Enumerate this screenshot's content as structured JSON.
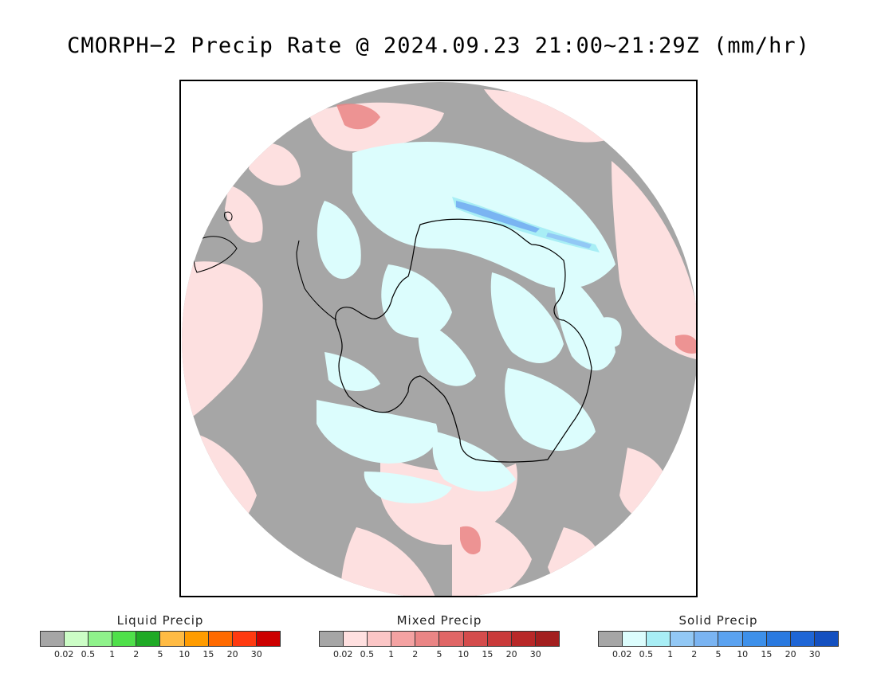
{
  "title": "CMORPH−2 Precip Rate @ 2024.09.23 21:00~21:29Z (mm/hr)",
  "map": {
    "projection": "south-polar-stereographic",
    "background_color": "#a6a6a6",
    "coastline_color": "#000000"
  },
  "legends": [
    {
      "name": "liquid",
      "title": "Liquid Precip",
      "ticks": [
        "0.02",
        "0.5",
        "1",
        "2",
        "5",
        "10",
        "15",
        "20",
        "30"
      ],
      "colors": [
        "#a6a6a6",
        "#ccfdc6",
        "#8ff28b",
        "#4fe04a",
        "#1faa25",
        "#ffbb44",
        "#ff9c00",
        "#ff6a00",
        "#ff3a10",
        "#cc0000"
      ]
    },
    {
      "name": "mixed",
      "title": "Mixed Precip",
      "ticks": [
        "0.02",
        "0.5",
        "1",
        "2",
        "5",
        "10",
        "15",
        "20",
        "30"
      ],
      "colors": [
        "#a6a6a6",
        "#ffe0e0",
        "#fbc6c6",
        "#f4a2a2",
        "#ea8585",
        "#e06666",
        "#d44c4c",
        "#c93a3a",
        "#b82828",
        "#a31f1f"
      ]
    },
    {
      "name": "solid",
      "title": "Solid Precip",
      "ticks": [
        "0.02",
        "0.5",
        "1",
        "2",
        "5",
        "10",
        "15",
        "20",
        "30"
      ],
      "colors": [
        "#a6a6a6",
        "#dcfdfd",
        "#a8eef5",
        "#92c8f5",
        "#7ab4f2",
        "#5aa2f0",
        "#3d90ea",
        "#2a7ae0",
        "#1f66d6",
        "#1450c0"
      ]
    }
  ]
}
